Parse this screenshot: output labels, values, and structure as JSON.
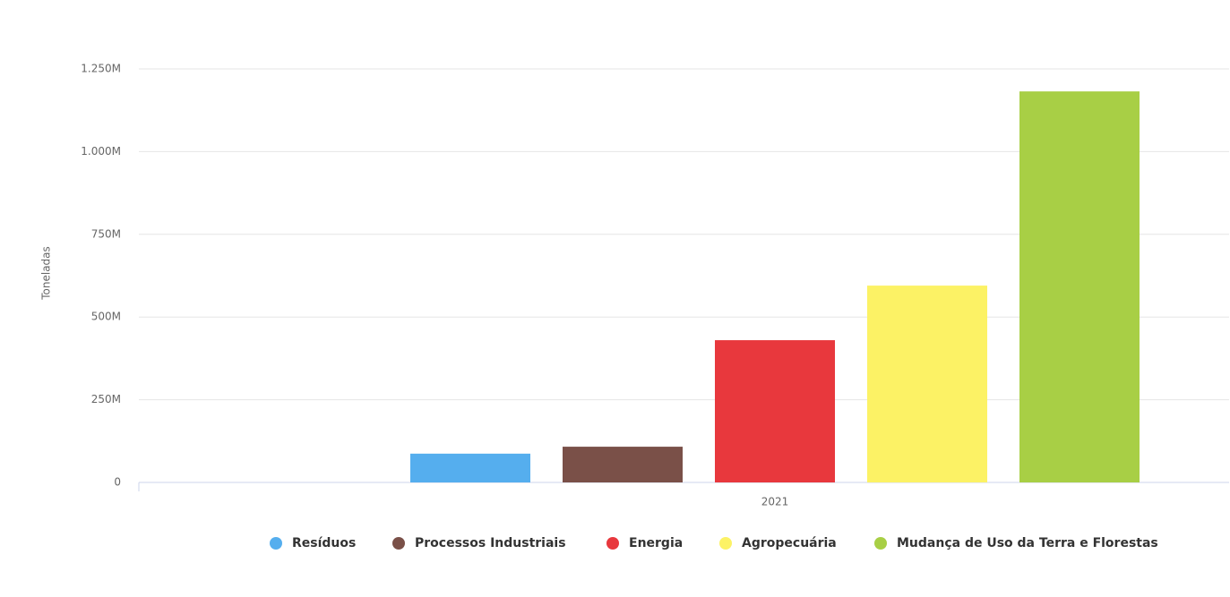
{
  "chart_data": {
    "type": "bar",
    "y_label": "Toneladas",
    "categories": [
      "2021"
    ],
    "series": [
      {
        "name": "Resíduos",
        "color": "#55aeee",
        "values": [
          87000000
        ]
      },
      {
        "name": "Processos Industriais",
        "color": "#7a5048",
        "values": [
          108000000
        ]
      },
      {
        "name": "Energia",
        "color": "#e8383d",
        "values": [
          430000000
        ]
      },
      {
        "name": "Agropecuária",
        "color": "#fcf265",
        "values": [
          595000000
        ]
      },
      {
        "name": "Mudança de Uso da Terra e Florestas",
        "color": "#a8cf45",
        "values": [
          1182000000
        ]
      }
    ],
    "ylim": [
      0,
      1250000000
    ],
    "yticks": [
      0,
      {
        "value": 250000000,
        "label": "250M"
      },
      {
        "value": 500000000,
        "label": "500M"
      },
      {
        "value": 750000000,
        "label": "750M"
      },
      {
        "value": 1000000000,
        "label": "1.000M"
      },
      {
        "value": 1250000000,
        "label": "1.250M"
      }
    ],
    "grid": true
  }
}
